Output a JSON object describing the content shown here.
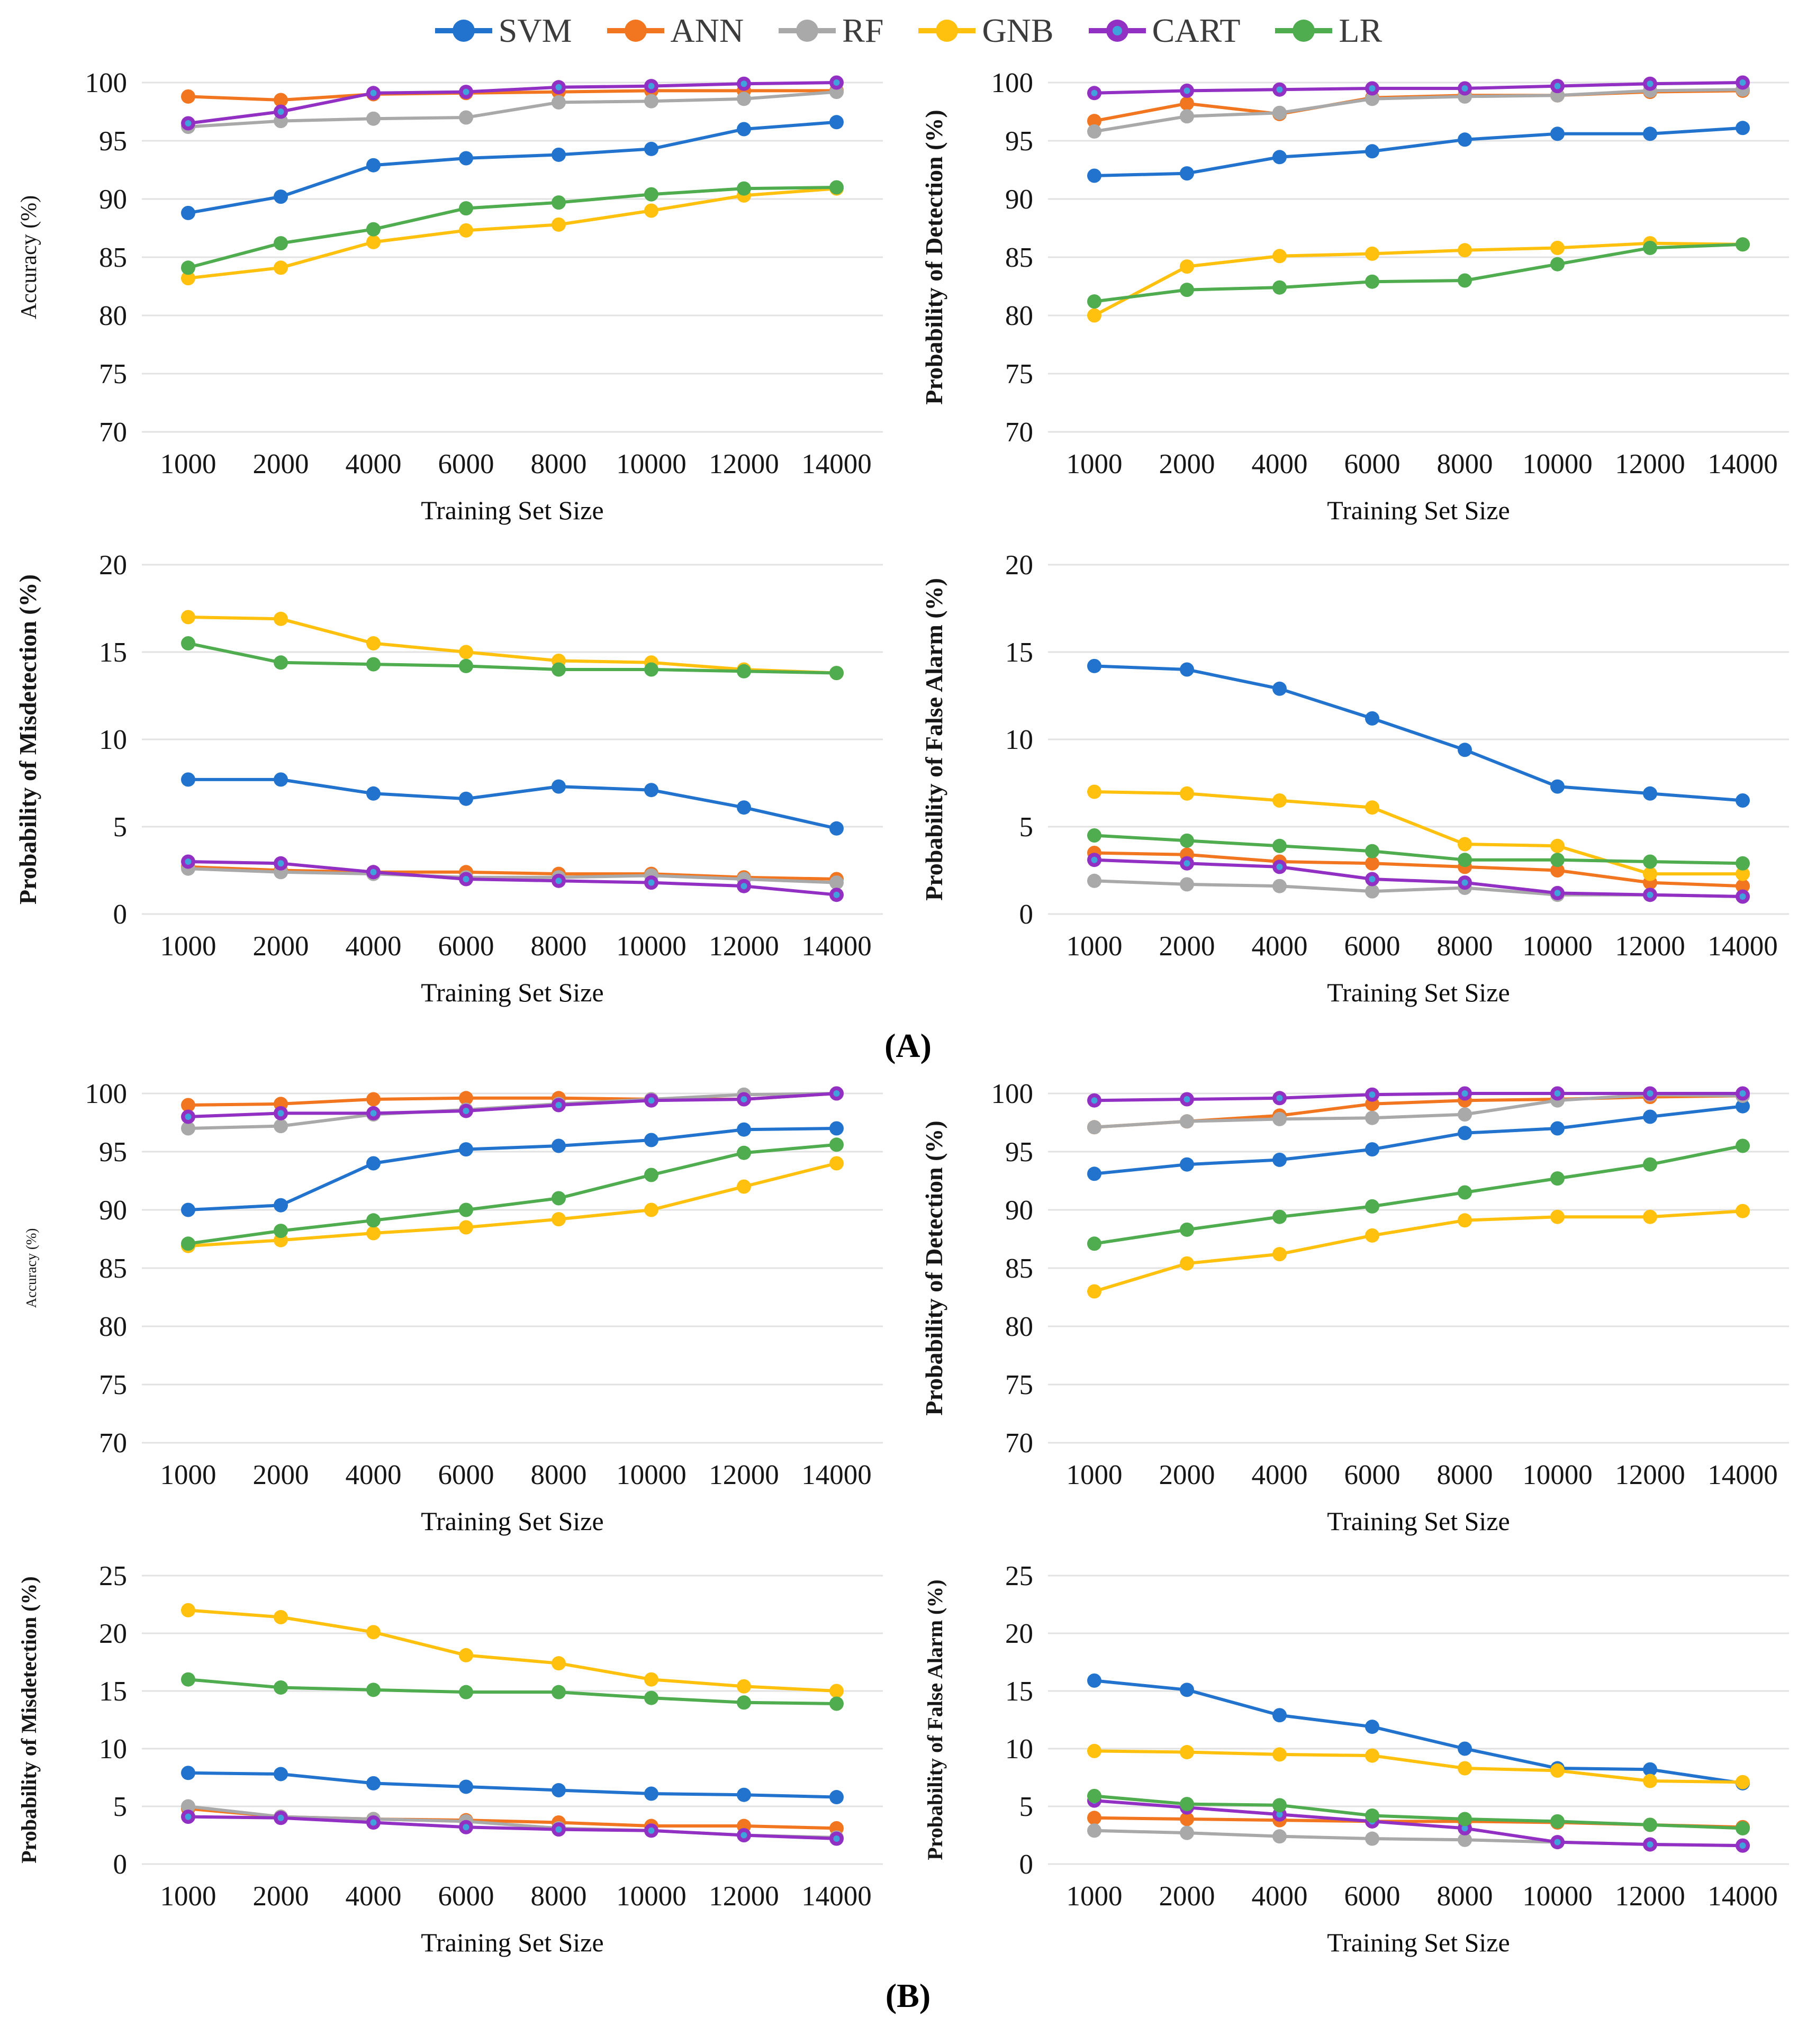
{
  "figure": {
    "legend": [
      {
        "label": "SVM",
        "color": "#2273CE"
      },
      {
        "label": "ANN",
        "color": "#F2761F"
      },
      {
        "label": "RF",
        "color": "#A9A9A9"
      },
      {
        "label": "GNB",
        "color": "#FFC10D"
      },
      {
        "label": "CART",
        "color": "#9230C4",
        "marker_center": "#3FA2DC"
      },
      {
        "label": "LR",
        "color": "#4FAD4F"
      }
    ],
    "panel_a_label": "(A)",
    "panel_b_label": "(B)"
  },
  "chart_data": [
    {
      "id": "accuracy-a",
      "panel": "A",
      "type": "line",
      "title": "",
      "ylabel": "Accuracy (%)",
      "xlabel": "Training Set Size",
      "ylim": [
        70,
        100
      ],
      "yticks": [
        70,
        75,
        80,
        85,
        90,
        95,
        100
      ],
      "grid": true,
      "legend_position": "top-shared",
      "ylabel_size": "large",
      "categories": [
        "1000",
        "2000",
        "4000",
        "6000",
        "8000",
        "10000",
        "12000",
        "14000"
      ],
      "series": [
        {
          "name": "SVM",
          "values": [
            88.8,
            90.2,
            92.9,
            93.5,
            93.8,
            94.3,
            96.0,
            96.6
          ]
        },
        {
          "name": "ANN",
          "values": [
            98.8,
            98.5,
            99.0,
            99.1,
            99.2,
            99.3,
            99.3,
            99.3
          ]
        },
        {
          "name": "RF",
          "values": [
            96.2,
            96.7,
            96.9,
            97.0,
            98.3,
            98.4,
            98.6,
            99.2
          ]
        },
        {
          "name": "GNB",
          "values": [
            83.2,
            84.1,
            86.3,
            87.3,
            87.8,
            89.0,
            90.3,
            90.9
          ]
        },
        {
          "name": "CART",
          "values": [
            96.5,
            97.5,
            99.1,
            99.2,
            99.6,
            99.7,
            99.9,
            100.0
          ]
        },
        {
          "name": "LR",
          "values": [
            84.1,
            86.2,
            87.4,
            89.2,
            89.7,
            90.4,
            90.9,
            91.0
          ]
        }
      ]
    },
    {
      "id": "detection-a",
      "panel": "A",
      "type": "line",
      "title": "",
      "ylabel": "Probability of Detection (%)",
      "xlabel": "Training Set Size",
      "ylim": [
        70,
        100
      ],
      "yticks": [
        70,
        75,
        80,
        85,
        90,
        95,
        100
      ],
      "grid": true,
      "legend_position": "top-shared",
      "ylabel_size": "bold",
      "categories": [
        "1000",
        "2000",
        "4000",
        "6000",
        "8000",
        "10000",
        "12000",
        "14000"
      ],
      "series": [
        {
          "name": "SVM",
          "values": [
            92.0,
            92.2,
            93.6,
            94.1,
            95.1,
            95.6,
            95.6,
            96.1
          ]
        },
        {
          "name": "ANN",
          "values": [
            96.7,
            98.2,
            97.3,
            98.7,
            98.9,
            98.9,
            99.2,
            99.3
          ]
        },
        {
          "name": "RF",
          "values": [
            95.8,
            97.1,
            97.4,
            98.6,
            98.8,
            98.9,
            99.3,
            99.4
          ]
        },
        {
          "name": "GNB",
          "values": [
            80.0,
            84.2,
            85.1,
            85.3,
            85.6,
            85.8,
            86.2,
            86.1
          ]
        },
        {
          "name": "CART",
          "values": [
            99.1,
            99.3,
            99.4,
            99.5,
            99.5,
            99.7,
            99.9,
            100.0
          ]
        },
        {
          "name": "LR",
          "values": [
            81.2,
            82.2,
            82.4,
            82.9,
            83.0,
            84.4,
            85.8,
            86.1
          ]
        }
      ]
    },
    {
      "id": "misdetection-a",
      "panel": "A",
      "type": "line",
      "title": "",
      "ylabel": "Probability of Misdetection (%)",
      "xlabel": "Training Set Size",
      "ylim": [
        0,
        20
      ],
      "yticks": [
        0,
        5,
        10,
        15,
        20
      ],
      "grid": true,
      "legend_position": "top-shared",
      "ylabel_size": "bold",
      "categories": [
        "1000",
        "2000",
        "4000",
        "6000",
        "8000",
        "10000",
        "12000",
        "14000"
      ],
      "series": [
        {
          "name": "SVM",
          "values": [
            7.7,
            7.7,
            6.9,
            6.6,
            7.3,
            7.1,
            6.1,
            4.9
          ]
        },
        {
          "name": "ANN",
          "values": [
            2.7,
            2.5,
            2.4,
            2.4,
            2.3,
            2.3,
            2.1,
            2.0
          ]
        },
        {
          "name": "RF",
          "values": [
            2.6,
            2.4,
            2.3,
            2.1,
            2.1,
            2.2,
            2.0,
            1.8
          ]
        },
        {
          "name": "GNB",
          "values": [
            17.0,
            16.9,
            15.5,
            15.0,
            14.5,
            14.4,
            14.0,
            13.8
          ]
        },
        {
          "name": "CART",
          "values": [
            3.0,
            2.9,
            2.4,
            2.0,
            1.9,
            1.8,
            1.6,
            1.1
          ]
        },
        {
          "name": "LR",
          "values": [
            15.5,
            14.4,
            14.3,
            14.2,
            14.0,
            14.0,
            13.9,
            13.8
          ]
        }
      ]
    },
    {
      "id": "false-alarm-a",
      "panel": "A",
      "type": "line",
      "title": "",
      "ylabel": "Probability of False Alarm (%)",
      "xlabel": "Training Set Size",
      "ylim": [
        0,
        20
      ],
      "yticks": [
        0,
        5,
        10,
        15,
        20
      ],
      "grid": true,
      "legend_position": "top-shared",
      "ylabel_size": "bold",
      "categories": [
        "1000",
        "2000",
        "4000",
        "6000",
        "8000",
        "10000",
        "12000",
        "14000"
      ],
      "series": [
        {
          "name": "SVM",
          "values": [
            14.2,
            14.0,
            12.9,
            11.2,
            9.4,
            7.3,
            6.9,
            6.5
          ]
        },
        {
          "name": "ANN",
          "values": [
            3.5,
            3.4,
            3.0,
            2.9,
            2.7,
            2.5,
            1.8,
            1.6
          ]
        },
        {
          "name": "RF",
          "values": [
            1.9,
            1.7,
            1.6,
            1.3,
            1.5,
            1.1,
            1.1,
            1.0
          ]
        },
        {
          "name": "GNB",
          "values": [
            7.0,
            6.9,
            6.5,
            6.1,
            4.0,
            3.9,
            2.3,
            2.3
          ]
        },
        {
          "name": "CART",
          "values": [
            3.1,
            2.9,
            2.7,
            2.0,
            1.8,
            1.2,
            1.1,
            1.0
          ]
        },
        {
          "name": "LR",
          "values": [
            4.5,
            4.2,
            3.9,
            3.6,
            3.1,
            3.1,
            3.0,
            2.9
          ]
        }
      ]
    },
    {
      "id": "accuracy-b",
      "panel": "B",
      "type": "line",
      "title": "",
      "ylabel": "Accuracy (%)",
      "xlabel": "Training Set Size",
      "ylim": [
        70,
        100
      ],
      "yticks": [
        70,
        75,
        80,
        85,
        90,
        95,
        100
      ],
      "grid": true,
      "legend_position": "top-shared",
      "ylabel_size": "small",
      "categories": [
        "1000",
        "2000",
        "4000",
        "6000",
        "8000",
        "10000",
        "12000",
        "14000"
      ],
      "series": [
        {
          "name": "SVM",
          "values": [
            90.0,
            90.4,
            94.0,
            95.2,
            95.5,
            96.0,
            96.9,
            97.0
          ]
        },
        {
          "name": "ANN",
          "values": [
            99.0,
            99.1,
            99.5,
            99.6,
            99.6,
            99.5,
            99.5,
            100.0
          ]
        },
        {
          "name": "RF",
          "values": [
            97.0,
            97.2,
            98.2,
            98.6,
            99.1,
            99.5,
            99.9,
            100.0
          ]
        },
        {
          "name": "GNB",
          "values": [
            86.9,
            87.4,
            88.0,
            88.5,
            89.2,
            90.0,
            92.0,
            94.0
          ]
        },
        {
          "name": "CART",
          "values": [
            98.0,
            98.3,
            98.3,
            98.5,
            99.0,
            99.4,
            99.5,
            100.0
          ]
        },
        {
          "name": "LR",
          "values": [
            87.1,
            88.2,
            89.1,
            90.0,
            91.0,
            93.0,
            94.9,
            95.6
          ]
        }
      ]
    },
    {
      "id": "detection-b",
      "panel": "B",
      "type": "line",
      "title": "",
      "ylabel": "Probability of Detection (%)",
      "xlabel": "Training Set Size",
      "ylim": [
        70,
        100
      ],
      "yticks": [
        70,
        75,
        80,
        85,
        90,
        95,
        100
      ],
      "grid": true,
      "legend_position": "top-shared",
      "ylabel_size": "bold",
      "categories": [
        "1000",
        "2000",
        "4000",
        "6000",
        "8000",
        "10000",
        "12000",
        "14000"
      ],
      "series": [
        {
          "name": "SVM",
          "values": [
            93.1,
            93.9,
            94.3,
            95.2,
            96.6,
            97.0,
            98.0,
            98.9
          ]
        },
        {
          "name": "ANN",
          "values": [
            97.1,
            97.6,
            98.1,
            99.1,
            99.4,
            99.5,
            99.7,
            99.8
          ]
        },
        {
          "name": "RF",
          "values": [
            97.1,
            97.6,
            97.8,
            97.9,
            98.2,
            99.4,
            99.9,
            99.8
          ]
        },
        {
          "name": "GNB",
          "values": [
            83.0,
            85.4,
            86.2,
            87.8,
            89.1,
            89.4,
            89.4,
            89.9
          ]
        },
        {
          "name": "CART",
          "values": [
            99.4,
            99.5,
            99.6,
            99.9,
            100.0,
            100.0,
            100.0,
            100.0
          ]
        },
        {
          "name": "LR",
          "values": [
            87.1,
            88.3,
            89.4,
            90.3,
            91.5,
            92.7,
            93.9,
            95.5
          ]
        }
      ]
    },
    {
      "id": "misdetection-b",
      "panel": "B",
      "type": "line",
      "title": "",
      "ylabel": "Probability of Misdetection (%)",
      "xlabel": "Training Set Size",
      "ylim": [
        0,
        25
      ],
      "yticks": [
        0,
        5,
        10,
        15,
        20,
        25
      ],
      "grid": true,
      "legend_position": "top-shared",
      "ylabel_size": "bold",
      "categories": [
        "1000",
        "2000",
        "4000",
        "6000",
        "8000",
        "10000",
        "12000",
        "14000"
      ],
      "series": [
        {
          "name": "SVM",
          "values": [
            7.9,
            7.8,
            7.0,
            6.7,
            6.4,
            6.1,
            6.0,
            5.8
          ]
        },
        {
          "name": "ANN",
          "values": [
            4.8,
            4.1,
            3.9,
            3.8,
            3.6,
            3.3,
            3.3,
            3.1
          ]
        },
        {
          "name": "RF",
          "values": [
            5.0,
            4.1,
            3.9,
            3.7,
            3.1,
            2.9,
            2.5,
            2.3
          ]
        },
        {
          "name": "GNB",
          "values": [
            22.0,
            21.4,
            20.1,
            18.1,
            17.4,
            16.0,
            15.4,
            15.0
          ]
        },
        {
          "name": "CART",
          "values": [
            4.1,
            4.0,
            3.6,
            3.2,
            3.0,
            2.9,
            2.5,
            2.2
          ]
        },
        {
          "name": "LR",
          "values": [
            16.0,
            15.3,
            15.1,
            14.9,
            14.9,
            14.4,
            14.0,
            13.9
          ]
        }
      ]
    },
    {
      "id": "false-alarm-b",
      "panel": "B",
      "type": "line",
      "title": "",
      "ylabel": "Probability of False Alarm (%)",
      "xlabel": "Training Set Size",
      "ylim": [
        0,
        25
      ],
      "yticks": [
        0,
        5,
        10,
        15,
        20,
        25
      ],
      "grid": true,
      "legend_position": "top-shared",
      "ylabel_size": "bold",
      "categories": [
        "1000",
        "2000",
        "4000",
        "6000",
        "8000",
        "10000",
        "12000",
        "14000"
      ],
      "series": [
        {
          "name": "SVM",
          "values": [
            15.9,
            15.1,
            12.9,
            11.9,
            10.0,
            8.3,
            8.2,
            7.0
          ]
        },
        {
          "name": "ANN",
          "values": [
            4.0,
            3.9,
            3.8,
            3.7,
            3.7,
            3.6,
            3.4,
            3.2
          ]
        },
        {
          "name": "RF",
          "values": [
            2.9,
            2.7,
            2.4,
            2.2,
            2.1,
            1.9,
            1.7,
            1.6
          ]
        },
        {
          "name": "GNB",
          "values": [
            9.8,
            9.7,
            9.5,
            9.4,
            8.3,
            8.1,
            7.2,
            7.1
          ]
        },
        {
          "name": "CART",
          "values": [
            5.5,
            4.9,
            4.3,
            3.7,
            3.1,
            1.9,
            1.7,
            1.6
          ]
        },
        {
          "name": "LR",
          "values": [
            5.9,
            5.2,
            5.1,
            4.2,
            3.9,
            3.7,
            3.4,
            3.1
          ]
        }
      ]
    }
  ]
}
